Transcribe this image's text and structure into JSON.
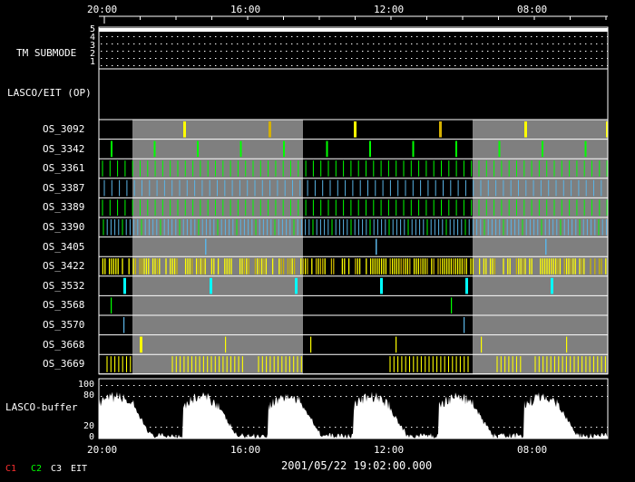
{
  "time_axis": {
    "ticks": [
      "20:00",
      "16:00",
      "12:00",
      "08:00"
    ]
  },
  "tm_submode": {
    "label": "TM SUBMODE",
    "levels": [
      "5",
      "4",
      "3",
      "2",
      "1"
    ]
  },
  "lasco_eit_op": {
    "label": "LASCO/EIT (OP)"
  },
  "os_rows": [
    {
      "label": "OS_3092",
      "color": "#ffff00",
      "pattern": "sparse-yellow"
    },
    {
      "label": "OS_3342",
      "color": "#00ff00",
      "pattern": "sparse-green"
    },
    {
      "label": "OS_3361",
      "color": "#00ff00",
      "pattern": "dense-green"
    },
    {
      "label": "OS_3387",
      "color": "#5ab4e6",
      "pattern": "dense-blue"
    },
    {
      "label": "OS_3389",
      "color": "#00ff00",
      "pattern": "dense-green"
    },
    {
      "label": "OS_3390",
      "color": "#5ab4e6",
      "pattern": "dense-blue-mixed"
    },
    {
      "label": "OS_3405",
      "color": "#5ab4e6",
      "pattern": "sparse-blue"
    },
    {
      "label": "OS_3422",
      "color": "#ffff00",
      "pattern": "very-dense-yellow"
    },
    {
      "label": "OS_3532",
      "color": "#00ffff",
      "pattern": "sparse-cyan"
    },
    {
      "label": "OS_3568",
      "color": "#00ff00",
      "pattern": "few-green"
    },
    {
      "label": "OS_3570",
      "color": "#5ab4e6",
      "pattern": "few-blue"
    },
    {
      "label": "OS_3668",
      "color": "#ffff00",
      "pattern": "sparse-yellow-thin"
    },
    {
      "label": "OS_3669",
      "color": "#ffff00",
      "pattern": "dense-yellow-blocks"
    }
  ],
  "lasco_buffer": {
    "label": "LASCO-buffer",
    "levels": [
      "100",
      "80",
      "20",
      "0"
    ]
  },
  "footer": {
    "timestamp": "2001/05/22 19:02:00.000",
    "legend": [
      {
        "text": "C1",
        "color": "#ff3030"
      },
      {
        "text": "C2",
        "color": "#00ff00"
      },
      {
        "text": "C3",
        "color": "#ffffff"
      },
      {
        "text": "EIT",
        "color": "#ffffff"
      }
    ]
  },
  "colors": {
    "shade": "#7f7f7f",
    "background": "#000000",
    "frame": "#ffffff"
  }
}
